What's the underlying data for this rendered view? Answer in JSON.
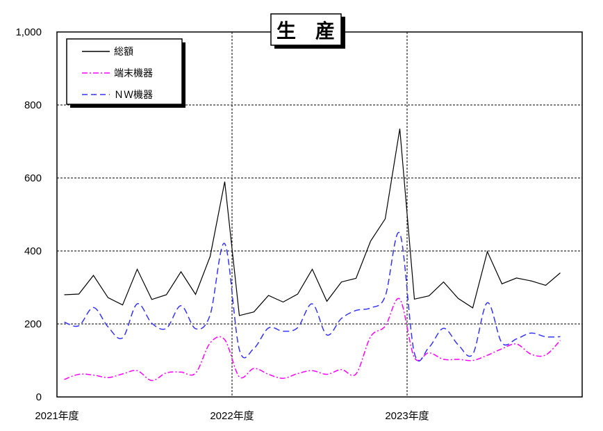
{
  "chart_data": {
    "type": "line",
    "title": "生　産",
    "xlabel": "",
    "ylabel": "",
    "ylim": [
      0,
      1000
    ],
    "yticks": [
      "0",
      "200",
      "400",
      "600",
      "800",
      "1,000"
    ],
    "fiscal_year_labels": [
      "2021年度",
      "2022年度",
      "2023年度"
    ],
    "x_count": 36,
    "grid": true,
    "legend_position": "top-left",
    "series": [
      {
        "name": "総額",
        "color": "#000000",
        "style": "solid",
        "values": [
          280,
          282,
          333,
          272,
          252,
          350,
          267,
          280,
          343,
          281,
          385,
          590,
          223,
          233,
          278,
          260,
          282,
          350,
          262,
          315,
          325,
          427,
          488,
          735,
          268,
          277,
          315,
          270,
          244,
          398,
          310,
          326,
          318,
          306,
          340,
          null
        ]
      },
      {
        "name": "端末機器",
        "color": "#ff00ff",
        "style": "dashdot",
        "values": [
          48,
          62,
          60,
          53,
          63,
          72,
          45,
          66,
          68,
          65,
          148,
          157,
          55,
          78,
          62,
          51,
          64,
          72,
          62,
          75,
          63,
          165,
          194,
          268,
          108,
          121,
          103,
          103,
          100,
          114,
          132,
          145,
          117,
          115,
          155,
          null
        ]
      },
      {
        "name": "ＮＷ機器",
        "color": "#3333ff",
        "style": "dashed",
        "values": [
          205,
          195,
          245,
          192,
          162,
          255,
          202,
          188,
          250,
          187,
          225,
          420,
          130,
          133,
          189,
          180,
          190,
          255,
          170,
          215,
          237,
          244,
          276,
          448,
          120,
          136,
          188,
          143,
          117,
          258,
          148,
          159,
          175,
          165,
          165,
          null
        ]
      }
    ]
  }
}
